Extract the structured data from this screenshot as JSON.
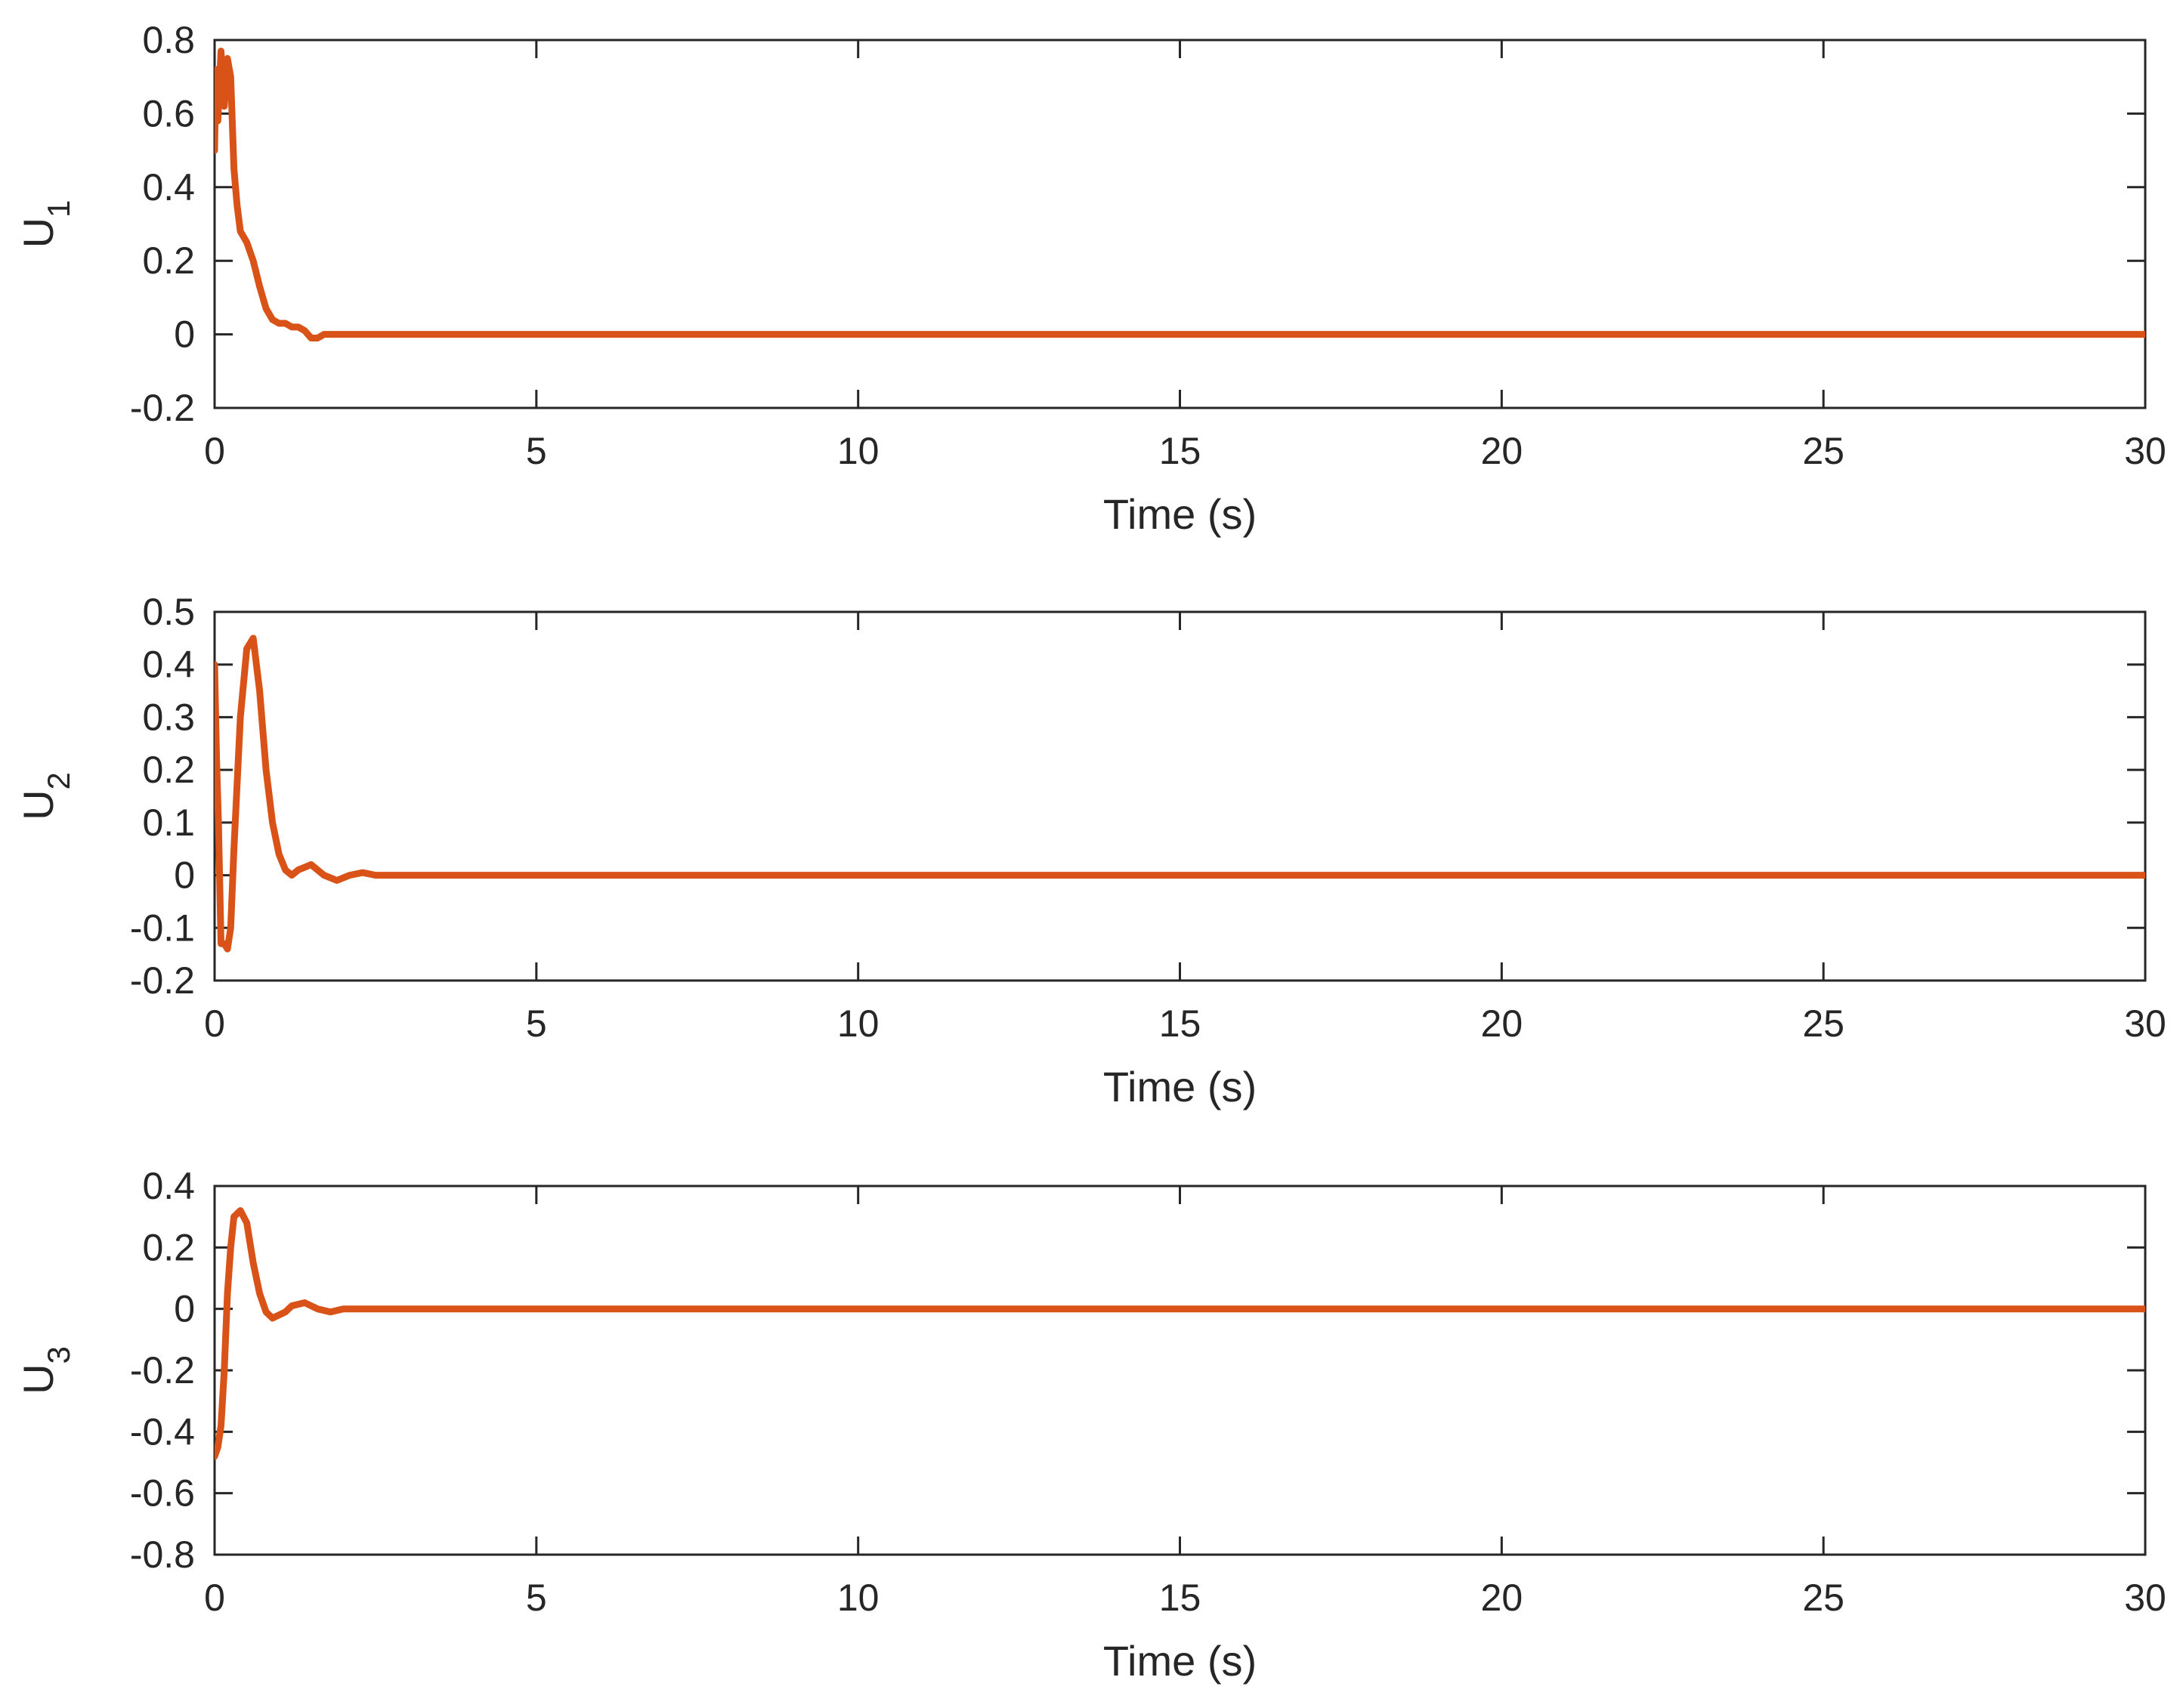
{
  "figure": {
    "line_color": "#D95319",
    "axes_color": "#262626",
    "background": "#FFFFFF"
  },
  "chart_data": [
    {
      "type": "line",
      "xlabel": "Time (s)",
      "ylabel": "U",
      "ylabel_sub": "1",
      "xlim": [
        0,
        30
      ],
      "ylim": [
        -0.2,
        0.8
      ],
      "xticks": [
        0,
        5,
        10,
        15,
        20,
        25,
        30
      ],
      "yticks": [
        -0.2,
        0,
        0.2,
        0.4,
        0.6,
        0.8
      ],
      "xtick_labels": [
        "0",
        "5",
        "10",
        "15",
        "20",
        "25",
        "30"
      ],
      "ytick_labels": [
        "-0.2",
        "0",
        "0.2",
        "0.4",
        "0.6",
        "0.8"
      ],
      "grid": false,
      "series": [
        {
          "x": [
            0,
            0.02,
            0.05,
            0.1,
            0.15,
            0.2,
            0.25,
            0.3,
            0.35,
            0.4,
            0.5,
            0.6,
            0.7,
            0.8,
            0.9,
            1.0,
            1.1,
            1.2,
            1.3,
            1.4,
            1.5,
            1.6,
            1.7,
            1.8,
            2.0,
            2.5,
            3,
            5,
            10,
            15,
            20,
            25,
            30
          ],
          "y": [
            0.5,
            0.72,
            0.58,
            0.77,
            0.62,
            0.75,
            0.7,
            0.45,
            0.35,
            0.28,
            0.25,
            0.2,
            0.13,
            0.07,
            0.04,
            0.03,
            0.03,
            0.02,
            0.02,
            0.01,
            -0.01,
            -0.01,
            0.0,
            0.0,
            0.0,
            0.0,
            0.0,
            0.0,
            0.0,
            0.0,
            0.0,
            0.0,
            0.0
          ]
        }
      ]
    },
    {
      "type": "line",
      "xlabel": "Time (s)",
      "ylabel": "U",
      "ylabel_sub": "2",
      "xlim": [
        0,
        30
      ],
      "ylim": [
        -0.2,
        0.5
      ],
      "xticks": [
        0,
        5,
        10,
        15,
        20,
        25,
        30
      ],
      "yticks": [
        -0.2,
        -0.1,
        0,
        0.1,
        0.2,
        0.3,
        0.4,
        0.5
      ],
      "xtick_labels": [
        "0",
        "5",
        "10",
        "15",
        "20",
        "25",
        "30"
      ],
      "ytick_labels": [
        "-0.2",
        "-0.1",
        "0",
        "0.1",
        "0.2",
        "0.3",
        "0.4",
        "0.5"
      ],
      "grid": false,
      "series": [
        {
          "x": [
            0,
            0.03,
            0.06,
            0.1,
            0.15,
            0.2,
            0.25,
            0.3,
            0.4,
            0.5,
            0.6,
            0.7,
            0.8,
            0.9,
            1.0,
            1.1,
            1.2,
            1.3,
            1.5,
            1.7,
            1.9,
            2.1,
            2.3,
            2.5,
            3,
            5,
            10,
            15,
            20,
            25,
            30
          ],
          "y": [
            0.4,
            0.22,
            0.1,
            -0.13,
            -0.13,
            -0.14,
            -0.1,
            0.05,
            0.3,
            0.43,
            0.45,
            0.35,
            0.2,
            0.1,
            0.04,
            0.01,
            0.0,
            0.01,
            0.02,
            0.0,
            -0.01,
            0.0,
            0.005,
            0.0,
            0.0,
            0.0,
            0.0,
            0.0,
            0.0,
            0.0,
            0.0
          ]
        }
      ]
    },
    {
      "type": "line",
      "xlabel": "Time (s)",
      "ylabel": "U",
      "ylabel_sub": "3",
      "xlim": [
        0,
        30
      ],
      "ylim": [
        -0.8,
        0.4
      ],
      "xticks": [
        0,
        5,
        10,
        15,
        20,
        25,
        30
      ],
      "yticks": [
        -0.8,
        -0.6,
        -0.4,
        -0.2,
        0,
        0.2,
        0.4
      ],
      "xtick_labels": [
        "0",
        "5",
        "10",
        "15",
        "20",
        "25",
        "30"
      ],
      "ytick_labels": [
        "-0.8",
        "-0.6",
        "-0.4",
        "-0.2",
        "0",
        "0.2",
        "0.4"
      ],
      "grid": false,
      "series": [
        {
          "x": [
            0,
            0.05,
            0.1,
            0.15,
            0.2,
            0.25,
            0.3,
            0.4,
            0.5,
            0.6,
            0.7,
            0.8,
            0.9,
            1.0,
            1.1,
            1.2,
            1.4,
            1.6,
            1.8,
            2.0,
            2.5,
            3,
            5,
            10,
            15,
            20,
            25,
            30
          ],
          "y": [
            -0.48,
            -0.45,
            -0.38,
            -0.2,
            0.05,
            0.2,
            0.3,
            0.32,
            0.28,
            0.15,
            0.05,
            -0.01,
            -0.03,
            -0.02,
            -0.01,
            0.01,
            0.02,
            0.0,
            -0.01,
            0.0,
            0.0,
            0.0,
            0.0,
            0.0,
            0.0,
            0.0,
            0.0,
            0.0
          ]
        }
      ]
    }
  ]
}
